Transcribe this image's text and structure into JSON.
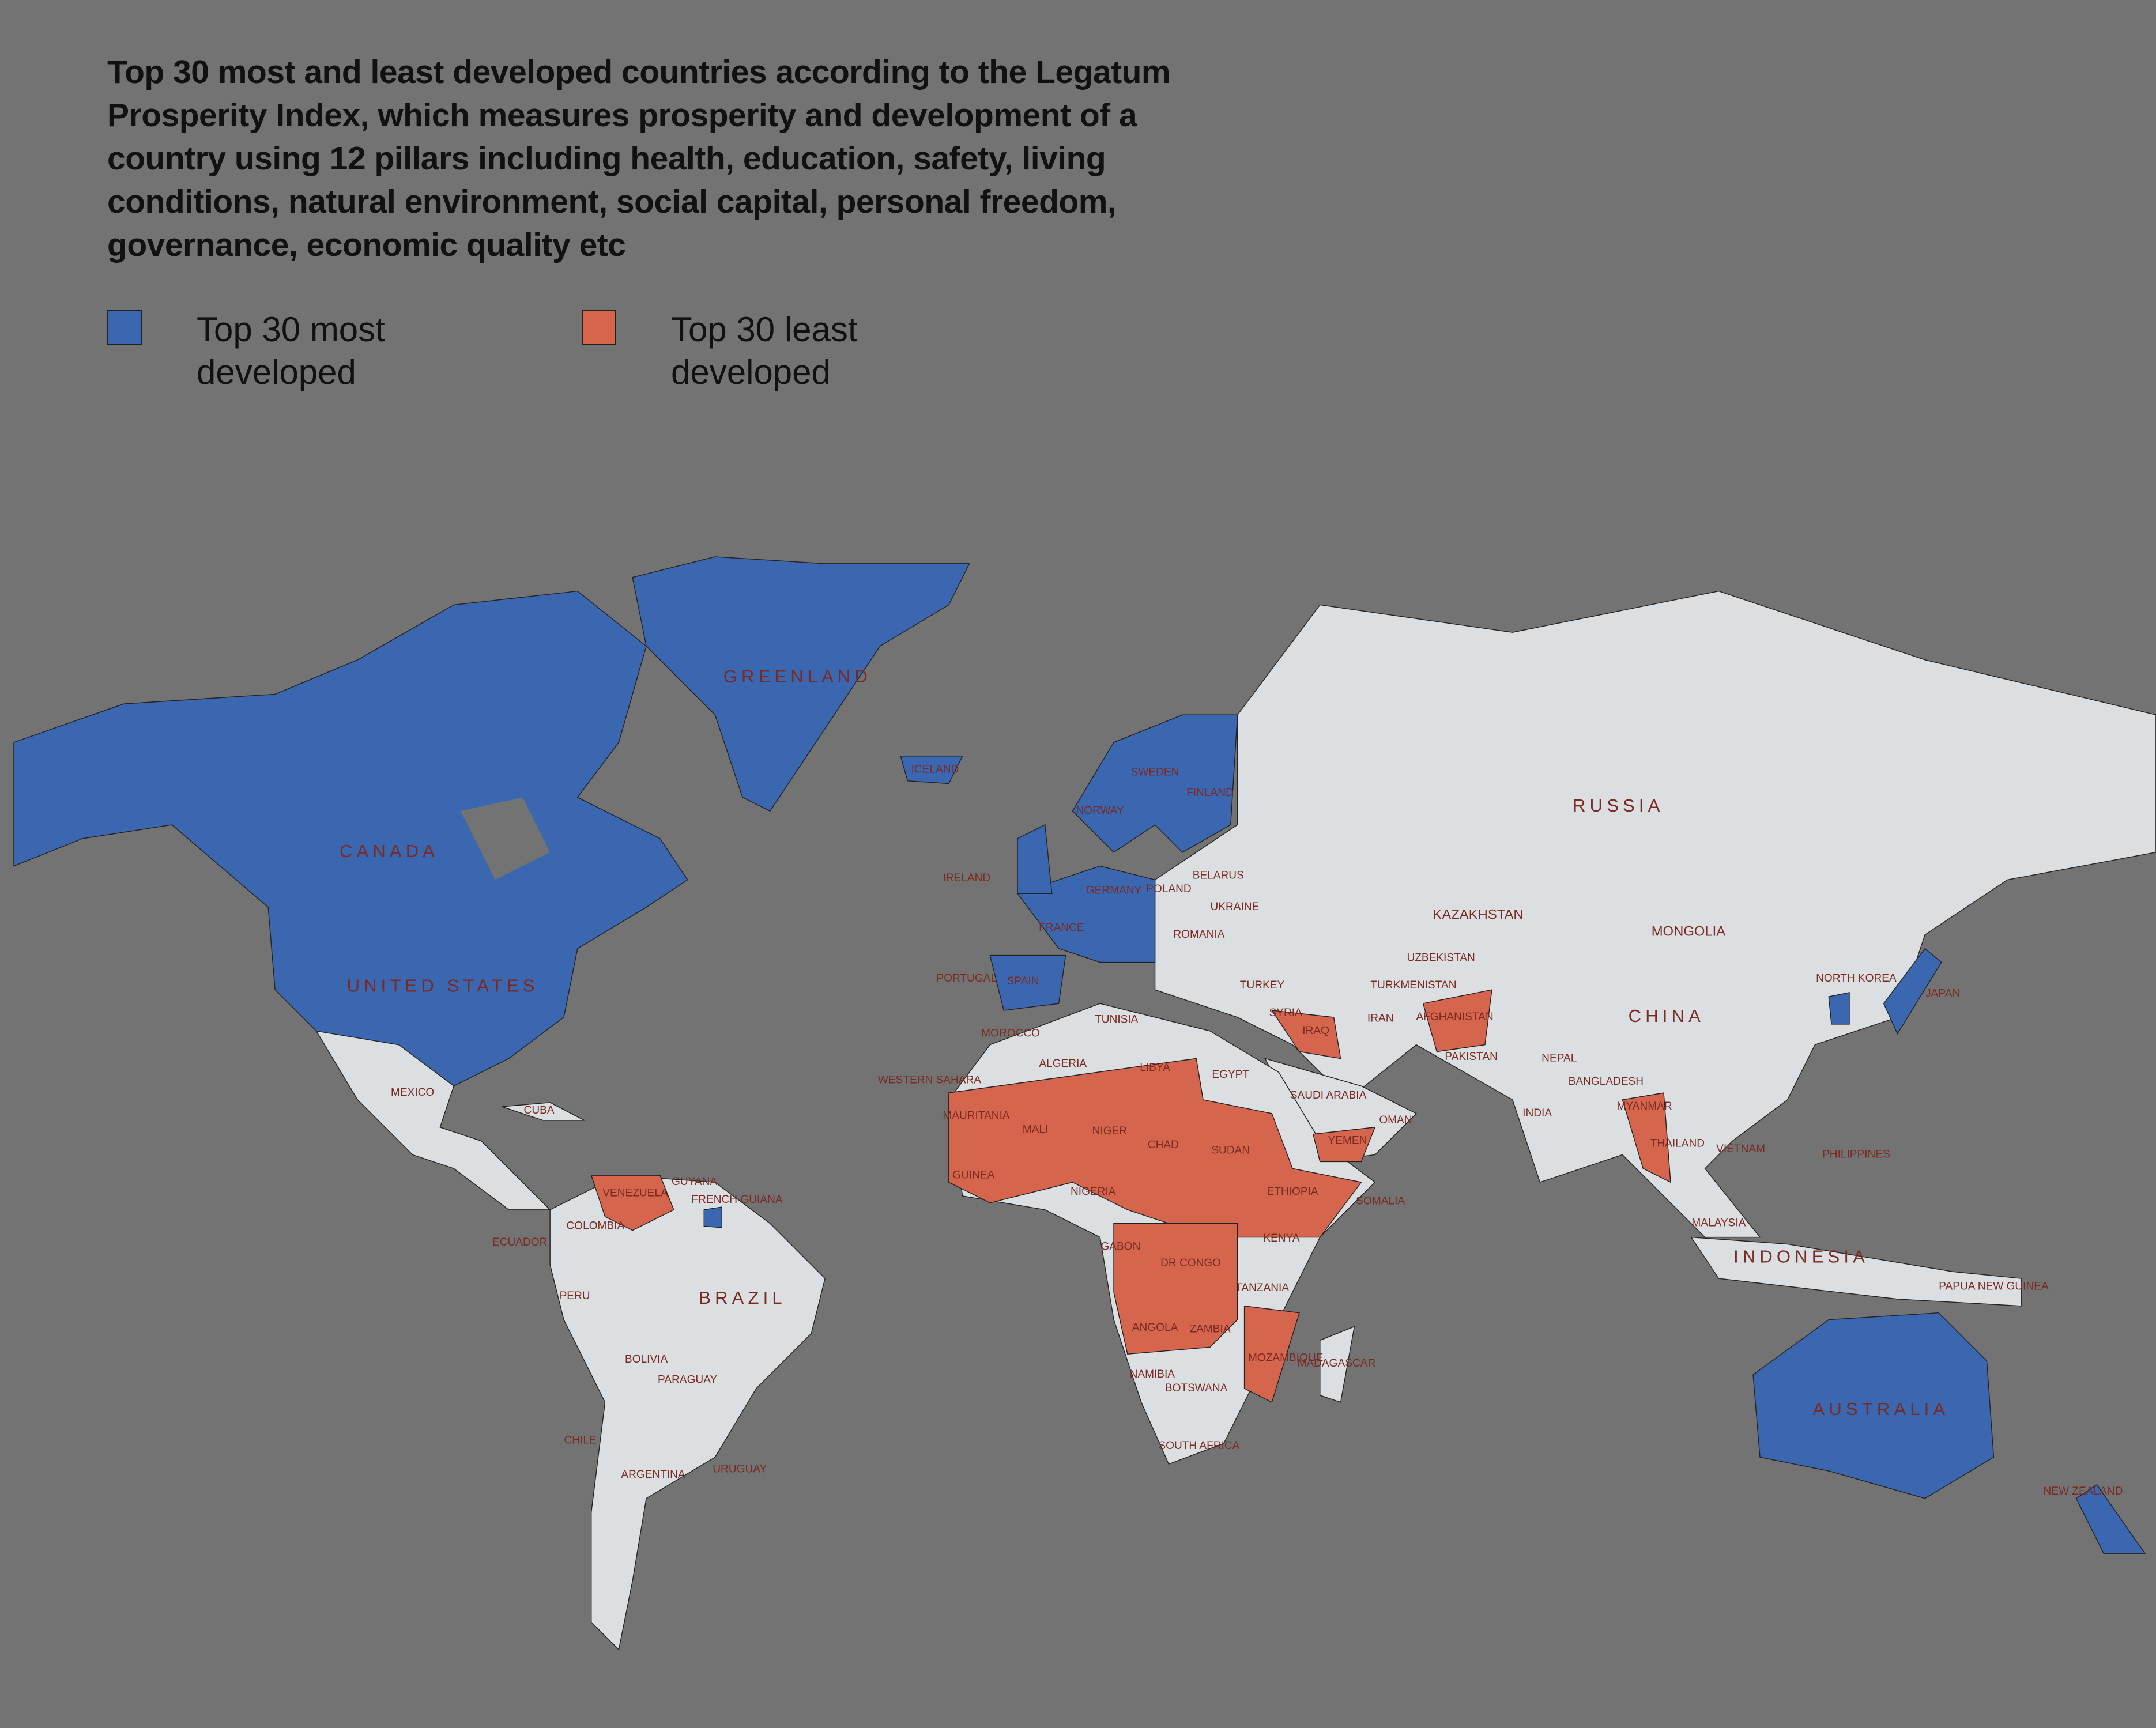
{
  "title": "Top 30 most and least developed countries according to the Legatum Prosperity Index, which measures prosperity and development of a country using 12 pillars including health, education, safety, living conditions, natural environment, social capital, personal freedom, governance, economic quality etc",
  "legend": [
    {
      "label": "Top 30 most developed",
      "color": "#3a67b0"
    },
    {
      "label": "Top 30 least developed",
      "color": "#d5664d"
    }
  ],
  "labels": [
    "GREENLAND",
    "CANADA",
    "UNITED STATES",
    "RUSSIA",
    "KAZAKHSTAN",
    "MONGOLIA",
    "CHINA",
    "BRAZIL",
    "AUSTRALIA",
    "INDONESIA",
    "ICELAND",
    "SWEDEN",
    "FINLAND",
    "NORWAY",
    "IRELAND",
    "GERMANY",
    "FRANCE",
    "SPAIN",
    "PORTUGAL",
    "POLAND",
    "BELARUS",
    "UKRAINE",
    "ROMANIA",
    "TURKEY",
    "SYRIA",
    "IRAQ",
    "IRAN",
    "TURKMENISTAN",
    "UZBEKISTAN",
    "AFGHANISTAN",
    "PAKISTAN",
    "INDIA",
    "NEPAL",
    "BANGLADESH",
    "MYANMAR",
    "THAILAND",
    "VIETNAM",
    "PHILIPPINES",
    "MALAYSIA",
    "PAPUA NEW GUINEA",
    "JAPAN",
    "NORTH KOREA",
    "SAUDI ARABIA",
    "YEMEN",
    "OMAN",
    "EGYPT",
    "LIBYA",
    "ALGERIA",
    "MOROCCO",
    "TUNISIA",
    "WESTERN SAHARA",
    "MAURITANIA",
    "MALI",
    "NIGER",
    "CHAD",
    "SUDAN",
    "ETHIOPIA",
    "SOMALIA",
    "NIGERIA",
    "GUINEA",
    "KENYA",
    "DR CONGO",
    "GABON",
    "TANZANIA",
    "ANGOLA",
    "ZAMBIA",
    "MOZAMBIQUE",
    "NAMIBIA",
    "BOTSWANA",
    "SOUTH AFRICA",
    "MADAGASCAR",
    "MEXICO",
    "CUBA",
    "VENEZUELA",
    "GUYANA",
    "FRENCH GUIANA",
    "COLOMBIA",
    "ECUADOR",
    "PERU",
    "BOLIVIA",
    "PARAGUAY",
    "CHILE",
    "ARGENTINA",
    "URUGUAY",
    "NEW ZEALAND"
  ]
}
